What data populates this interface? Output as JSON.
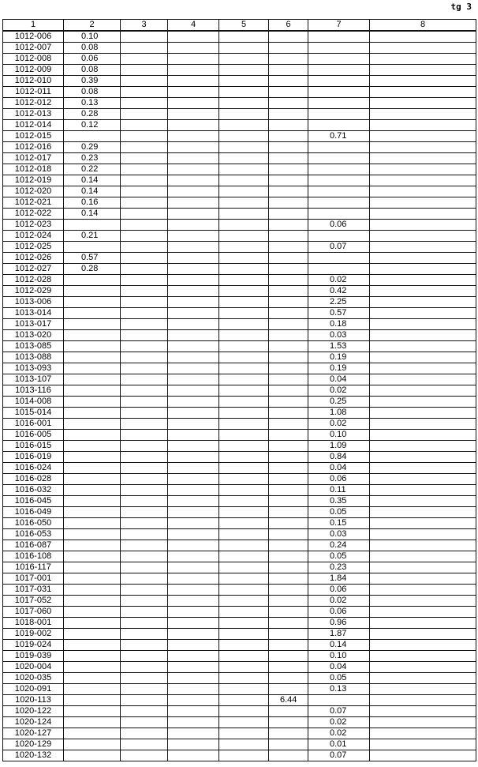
{
  "page_label": "tg 3",
  "table": {
    "headers": [
      "1",
      "2",
      "3",
      "4",
      "5",
      "6",
      "7",
      "8"
    ],
    "rows": [
      [
        "1012-006",
        "0.10",
        "",
        "",
        "",
        "",
        "",
        ""
      ],
      [
        "1012-007",
        "0.08",
        "",
        "",
        "",
        "",
        "",
        ""
      ],
      [
        "1012-008",
        "0.06",
        "",
        "",
        "",
        "",
        "",
        ""
      ],
      [
        "1012-009",
        "0.08",
        "",
        "",
        "",
        "",
        "",
        ""
      ],
      [
        "1012-010",
        "0.39",
        "",
        "",
        "",
        "",
        "",
        ""
      ],
      [
        "1012-011",
        "0.08",
        "",
        "",
        "",
        "",
        "",
        ""
      ],
      [
        "1012-012",
        "0.13",
        "",
        "",
        "",
        "",
        "",
        ""
      ],
      [
        "1012-013",
        "0.28",
        "",
        "",
        "",
        "",
        "",
        ""
      ],
      [
        "1012-014",
        "0.12",
        "",
        "",
        "",
        "",
        "",
        ""
      ],
      [
        "1012-015",
        "",
        "",
        "",
        "",
        "",
        "0.71",
        ""
      ],
      [
        "1012-016",
        "0.29",
        "",
        "",
        "",
        "",
        "",
        ""
      ],
      [
        "1012-017",
        "0.23",
        "",
        "",
        "",
        "",
        "",
        ""
      ],
      [
        "1012-018",
        "0.22",
        "",
        "",
        "",
        "",
        "",
        ""
      ],
      [
        "1012-019",
        "0.14",
        "",
        "",
        "",
        "",
        "",
        ""
      ],
      [
        "1012-020",
        "0.14",
        "",
        "",
        "",
        "",
        "",
        ""
      ],
      [
        "1012-021",
        "0.16",
        "",
        "",
        "",
        "",
        "",
        ""
      ],
      [
        "1012-022",
        "0.14",
        "",
        "",
        "",
        "",
        "",
        ""
      ],
      [
        "1012-023",
        "",
        "",
        "",
        "",
        "",
        "0.06",
        ""
      ],
      [
        "1012-024",
        "0.21",
        "",
        "",
        "",
        "",
        "",
        ""
      ],
      [
        "1012-025",
        "",
        "",
        "",
        "",
        "",
        "0.07",
        ""
      ],
      [
        "1012-026",
        "0.57",
        "",
        "",
        "",
        "",
        "",
        ""
      ],
      [
        "1012-027",
        "0.28",
        "",
        "",
        "",
        "",
        "",
        ""
      ],
      [
        "1012-028",
        "",
        "",
        "",
        "",
        "",
        "0.02",
        ""
      ],
      [
        "1012-029",
        "",
        "",
        "",
        "",
        "",
        "0.42",
        ""
      ],
      [
        "1013-006",
        "",
        "",
        "",
        "",
        "",
        "2.25",
        ""
      ],
      [
        "1013-014",
        "",
        "",
        "",
        "",
        "",
        "0.57",
        ""
      ],
      [
        "1013-017",
        "",
        "",
        "",
        "",
        "",
        "0.18",
        ""
      ],
      [
        "1013-020",
        "",
        "",
        "",
        "",
        "",
        "0.03",
        ""
      ],
      [
        "1013-085",
        "",
        "",
        "",
        "",
        "",
        "1.53",
        ""
      ],
      [
        "1013-088",
        "",
        "",
        "",
        "",
        "",
        "0.19",
        ""
      ],
      [
        "1013-093",
        "",
        "",
        "",
        "",
        "",
        "0.19",
        ""
      ],
      [
        "1013-107",
        "",
        "",
        "",
        "",
        "",
        "0.04",
        ""
      ],
      [
        "1013-116",
        "",
        "",
        "",
        "",
        "",
        "0.02",
        ""
      ],
      [
        "1014-008",
        "",
        "",
        "",
        "",
        "",
        "0.25",
        ""
      ],
      [
        "1015-014",
        "",
        "",
        "",
        "",
        "",
        "1.08",
        ""
      ],
      [
        "1016-001",
        "",
        "",
        "",
        "",
        "",
        "0.02",
        ""
      ],
      [
        "1016-005",
        "",
        "",
        "",
        "",
        "",
        "0.10",
        ""
      ],
      [
        "1016-015",
        "",
        "",
        "",
        "",
        "",
        "1.09",
        ""
      ],
      [
        "1016-019",
        "",
        "",
        "",
        "",
        "",
        "0.84",
        ""
      ],
      [
        "1016-024",
        "",
        "",
        "",
        "",
        "",
        "0.04",
        ""
      ],
      [
        "1016-028",
        "",
        "",
        "",
        "",
        "",
        "0.06",
        ""
      ],
      [
        "1016-032",
        "",
        "",
        "",
        "",
        "",
        "0.11",
        ""
      ],
      [
        "1016-045",
        "",
        "",
        "",
        "",
        "",
        "0.35",
        ""
      ],
      [
        "1016-049",
        "",
        "",
        "",
        "",
        "",
        "0.05",
        ""
      ],
      [
        "1016-050",
        "",
        "",
        "",
        "",
        "",
        "0.15",
        ""
      ],
      [
        "1016-053",
        "",
        "",
        "",
        "",
        "",
        "0.03",
        ""
      ],
      [
        "1016-087",
        "",
        "",
        "",
        "",
        "",
        "0.24",
        ""
      ],
      [
        "1016-108",
        "",
        "",
        "",
        "",
        "",
        "0.05",
        ""
      ],
      [
        "1016-117",
        "",
        "",
        "",
        "",
        "",
        "0.23",
        ""
      ],
      [
        "1017-001",
        "",
        "",
        "",
        "",
        "",
        "1.84",
        ""
      ],
      [
        "1017-031",
        "",
        "",
        "",
        "",
        "",
        "0.06",
        ""
      ],
      [
        "1017-052",
        "",
        "",
        "",
        "",
        "",
        "0.02",
        ""
      ],
      [
        "1017-060",
        "",
        "",
        "",
        "",
        "",
        "0.06",
        ""
      ],
      [
        "1018-001",
        "",
        "",
        "",
        "",
        "",
        "0.96",
        ""
      ],
      [
        "1019-002",
        "",
        "",
        "",
        "",
        "",
        "1.87",
        ""
      ],
      [
        "1019-024",
        "",
        "",
        "",
        "",
        "",
        "0.14",
        ""
      ],
      [
        "1019-039",
        "",
        "",
        "",
        "",
        "",
        "0.10",
        ""
      ],
      [
        "1020-004",
        "",
        "",
        "",
        "",
        "",
        "0.04",
        ""
      ],
      [
        "1020-035",
        "",
        "",
        "",
        "",
        "",
        "0.05",
        ""
      ],
      [
        "1020-091",
        "",
        "",
        "",
        "",
        "",
        "0.13",
        ""
      ],
      [
        "1020-113",
        "",
        "",
        "",
        "",
        "6.44",
        "",
        ""
      ],
      [
        "1020-122",
        "",
        "",
        "",
        "",
        "",
        "0.07",
        ""
      ],
      [
        "1020-124",
        "",
        "",
        "",
        "",
        "",
        "0.02",
        ""
      ],
      [
        "1020-127",
        "",
        "",
        "",
        "",
        "",
        "0.02",
        ""
      ],
      [
        "1020-129",
        "",
        "",
        "",
        "",
        "",
        "0.01",
        ""
      ],
      [
        "1020-132",
        "",
        "",
        "",
        "",
        "",
        "0.07",
        ""
      ]
    ]
  }
}
